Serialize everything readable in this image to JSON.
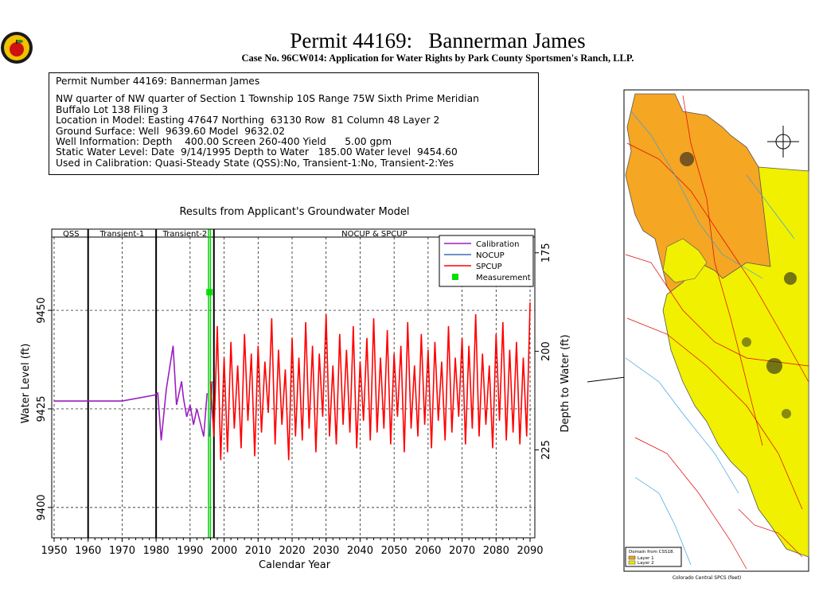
{
  "header": {
    "title": "Permit 44169:   Bannerman James",
    "subtitle": "Case No. 96CW014: Application for Water Rights by Park County Sportsmen's Ranch, LLP."
  },
  "info": {
    "lines": [
      "Permit Number 44169: Bannerman James",
      "NW quarter of NW quarter of Section 1 Township 10S Range 75W Sixth Prime Meridian",
      "Buffalo Lot 138 Filing 3",
      "Location in Model: Easting 47647 Northing  63130 Row  81 Column 48 Layer 2",
      "Ground Surface: Well  9639.60 Model  9632.02",
      "Well Information: Depth    400.00 Screen 260-400 Yield      5.00 gpm",
      "Static Water Level: Date  9/14/1995 Depth to Water   185.00 Water level  9454.60",
      "Used in Calibration: Quasi-Steady State (QSS):No, Transient-1:No, Transient-2:Yes"
    ]
  },
  "chart_data": {
    "type": "line",
    "title": "Results from Applicant's Groundwater Model",
    "x_label": "Calendar Year",
    "y_label": "Water Level (ft)",
    "y2_label": "Depth to Water (ft)",
    "xlim": [
      1949.3,
      2091.4
    ],
    "xticks": [
      1950,
      1960,
      1970,
      1980,
      1990,
      2000,
      2010,
      2020,
      2030,
      2040,
      2050,
      2060,
      2070,
      2080,
      2090
    ],
    "ylim": [
      9392.3,
      9470.6
    ],
    "yticks": [
      9400,
      9425,
      9450
    ],
    "y2lim": [
      247.3,
      169
    ],
    "y2ticks": [
      175,
      200,
      225
    ],
    "grid": true,
    "phases": [
      {
        "label": "QSS",
        "start": 1950,
        "end": 1960
      },
      {
        "label": "Transient-1",
        "start": 1960,
        "end": 1980
      },
      {
        "label": "Transient-2",
        "start": 1980,
        "end": 1997
      },
      {
        "label": "NOCUP  &  SPCUP",
        "start": 1997,
        "end": 2091.4
      }
    ],
    "measurement_date": 1995.7,
    "legend": "upper right",
    "series": [
      {
        "name": "Calibration",
        "color": "#9b1fc0",
        "x": [
          1950,
          1970,
          1979.5,
          1980.5,
          1981.5,
          1983,
          1985,
          1986,
          1987.5,
          1988,
          1989,
          1990,
          1991,
          1992,
          1994,
          1995
        ],
        "values": [
          9427,
          9427,
          9428.5,
          9429,
          9417,
          9430,
          9441,
          9426,
          9432,
          9428,
          9423,
          9426,
          9421,
          9425,
          9418,
          9429
        ]
      },
      {
        "name": "NOCUP",
        "color": "#3b6fb6",
        "x": [
          1995.7,
          1996.5
        ],
        "values": [
          9418,
          9432
        ]
      },
      {
        "name": "SPCUP",
        "color": "#ff0000",
        "x": [
          1996,
          1997,
          1998,
          1999,
          2000,
          2001,
          2002,
          2003,
          2004,
          2005,
          2006,
          2007,
          2008,
          2009,
          2010,
          2011,
          2012,
          2013,
          2014,
          2015,
          2016,
          2017,
          2018,
          2019,
          2020,
          2021,
          2022,
          2023,
          2024,
          2025,
          2026,
          2027,
          2028,
          2029,
          2030,
          2031,
          2032,
          2033,
          2034,
          2035,
          2036,
          2037,
          2038,
          2039,
          2040,
          2041,
          2042,
          2043,
          2044,
          2045,
          2046,
          2047,
          2048,
          2049,
          2050,
          2051,
          2052,
          2053,
          2054,
          2055,
          2056,
          2057,
          2058,
          2059,
          2060,
          2061,
          2062,
          2063,
          2064,
          2065,
          2066,
          2067,
          2068,
          2069,
          2070,
          2071,
          2072,
          2073,
          2074,
          2075,
          2076,
          2077,
          2078,
          2079,
          2080,
          2081,
          2082,
          2083,
          2084,
          2085,
          2086,
          2087,
          2088,
          2089,
          2090
        ],
        "values": [
          9432,
          9418,
          9446,
          9412,
          9438,
          9414,
          9442,
          9420,
          9436,
          9415,
          9444,
          9422,
          9439,
          9413,
          9441,
          9419,
          9437,
          9424,
          9448,
          9416,
          9440,
          9421,
          9435,
          9412,
          9443,
          9418,
          9438,
          9417,
          9447,
          9420,
          9441,
          9414,
          9439,
          9423,
          9449,
          9418,
          9436,
          9416,
          9444,
          9421,
          9440,
          9419,
          9446,
          9415,
          9437,
          9422,
          9443,
          9417,
          9448,
          9419,
          9438,
          9420,
          9445,
          9416,
          9439,
          9423,
          9441,
          9414,
          9447,
          9420,
          9436,
          9418,
          9444,
          9421,
          9440,
          9415,
          9442,
          9422,
          9437,
          9417,
          9446,
          9419,
          9438,
          9423,
          9443,
          9416,
          9441,
          9420,
          9449,
          9418,
          9439,
          9421,
          9436,
          9415,
          9444,
          9422,
          9447,
          9417,
          9440,
          9419,
          9442,
          9416,
          9438,
          9418,
          9452
        ]
      },
      {
        "name": "Measurement",
        "color": "#00e000",
        "marker": "square",
        "x": [
          1995.7
        ],
        "values": [
          9454.6
        ]
      }
    ]
  },
  "map": {
    "legend_title": "Domain from CSS18.",
    "layers": [
      "Layer 1",
      "Layer 2"
    ],
    "axis_label": "Colorado Central SPCS (feet)"
  }
}
